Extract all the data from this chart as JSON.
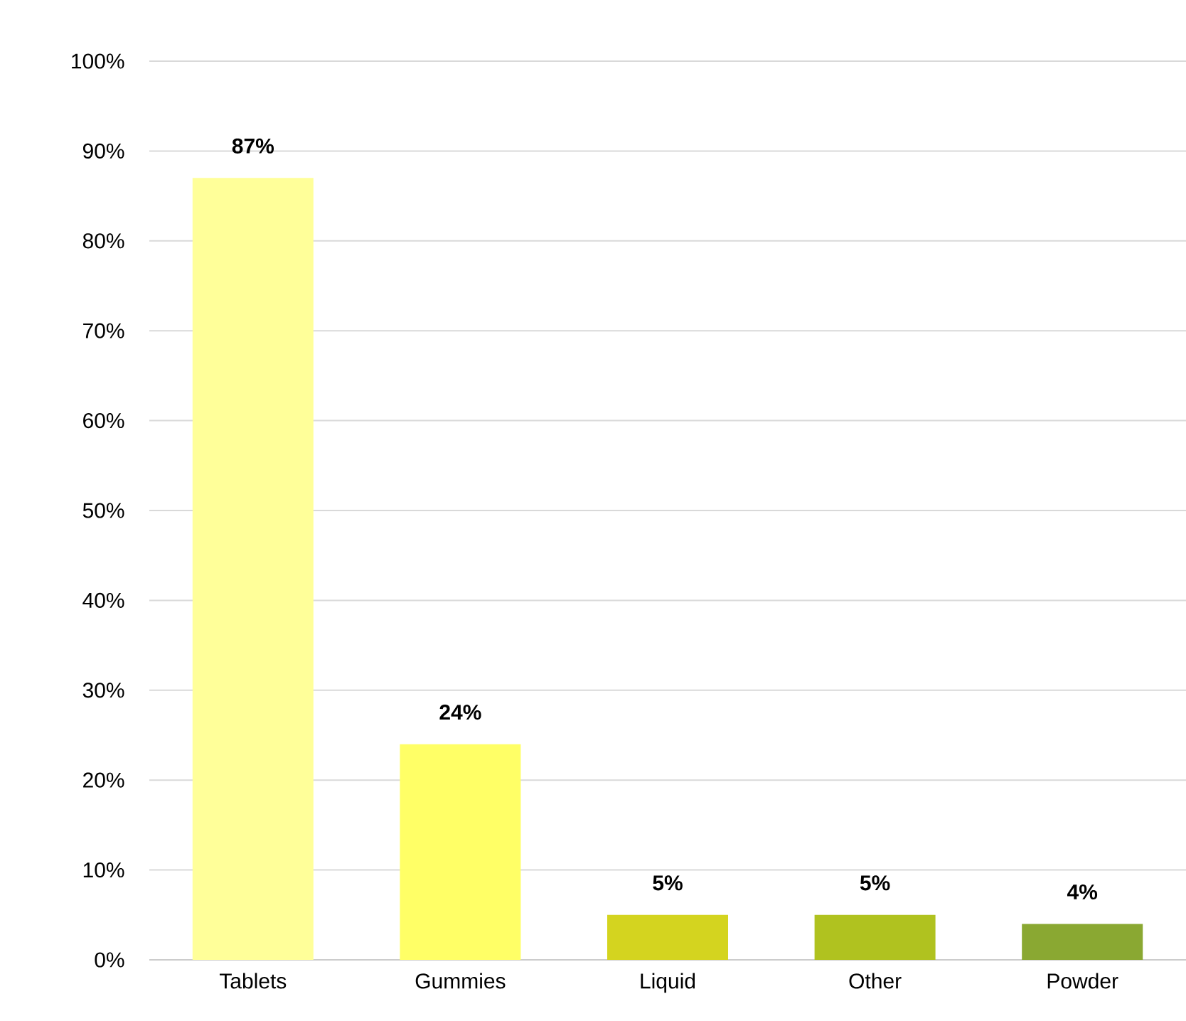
{
  "chart_data": {
    "type": "bar",
    "categories": [
      "Tablets",
      "Gummies",
      "Liquid",
      "Other",
      "Powder"
    ],
    "values": [
      87,
      24,
      5,
      5,
      4
    ],
    "colors": [
      "#ffff99",
      "#ffff66",
      "#d4d41f",
      "#b0c21f",
      "#8aa832"
    ],
    "value_labels": [
      "87%",
      "24%",
      "5%",
      "5%",
      "4%"
    ],
    "ylim": [
      0,
      100
    ],
    "yticks": [
      {
        "value": 0,
        "label": "0%"
      },
      {
        "value": 10,
        "label": "10%"
      },
      {
        "value": 20,
        "label": "20%"
      },
      {
        "value": 30,
        "label": "30%"
      },
      {
        "value": 40,
        "label": "40%"
      },
      {
        "value": 50,
        "label": "50%"
      },
      {
        "value": 60,
        "label": "60%"
      },
      {
        "value": 70,
        "label": "70%"
      },
      {
        "value": 80,
        "label": "80%"
      },
      {
        "value": 90,
        "label": "90%"
      },
      {
        "value": 100,
        "label": "100%"
      }
    ],
    "grid": "y"
  }
}
